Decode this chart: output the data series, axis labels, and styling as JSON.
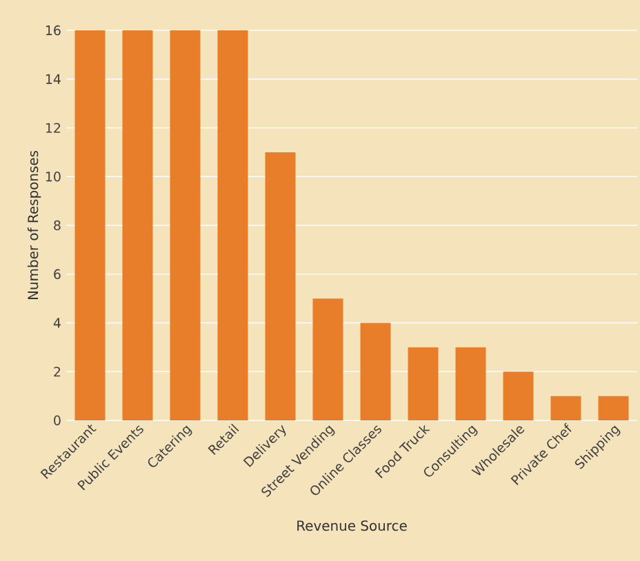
{
  "chart_data": {
    "type": "bar",
    "xlabel": "Revenue Source",
    "ylabel": "Number of Responses",
    "categories": [
      "Restaurant",
      "Public Events",
      "Catering",
      "Retail",
      "Delivery",
      "Street Vending",
      "Online Classes",
      "Food Truck",
      "Consulting",
      "Wholesale",
      "Private Chef",
      "Shipping"
    ],
    "values": [
      16,
      16,
      16,
      16,
      11,
      5,
      4,
      3,
      3,
      2,
      1,
      1
    ],
    "color": "#e87e2a",
    "ylim": [
      0,
      16
    ],
    "yticks": [
      0,
      2,
      4,
      6,
      8,
      10,
      12,
      14,
      16
    ],
    "grid": "y"
  }
}
